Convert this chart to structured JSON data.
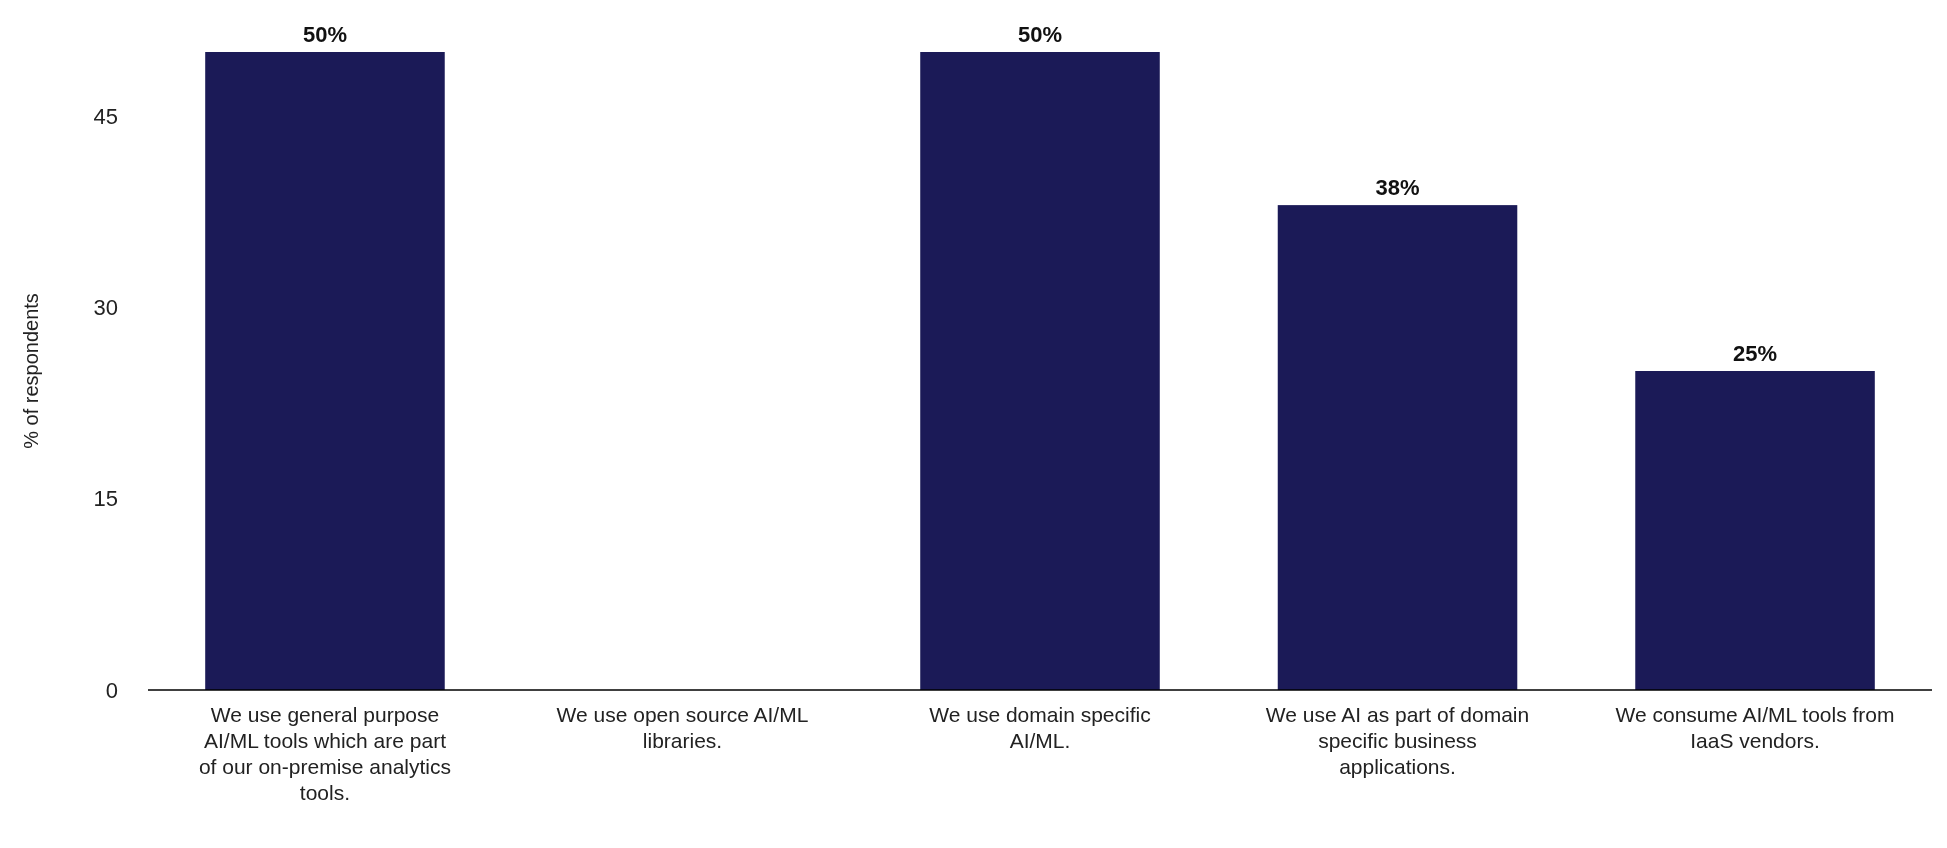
{
  "chart_data": {
    "type": "bar",
    "ylabel": "% of respondents",
    "categories": [
      "We use general purpose AI/ML tools which are part of our on-premise analytics tools.",
      "We use open source AI/ML libraries.",
      "We use domain specific AI/ML.",
      "We use AI as part of domain specific business applications.",
      "We consume AI/ML tools from IaaS vendors."
    ],
    "values": [
      50,
      0,
      50,
      38,
      25
    ],
    "value_labels": [
      "50%",
      null,
      "50%",
      "38%",
      "25%"
    ],
    "color": "#1b1a57",
    "ylim": [
      0,
      50
    ],
    "yticks": [
      0,
      15,
      30,
      45
    ]
  }
}
